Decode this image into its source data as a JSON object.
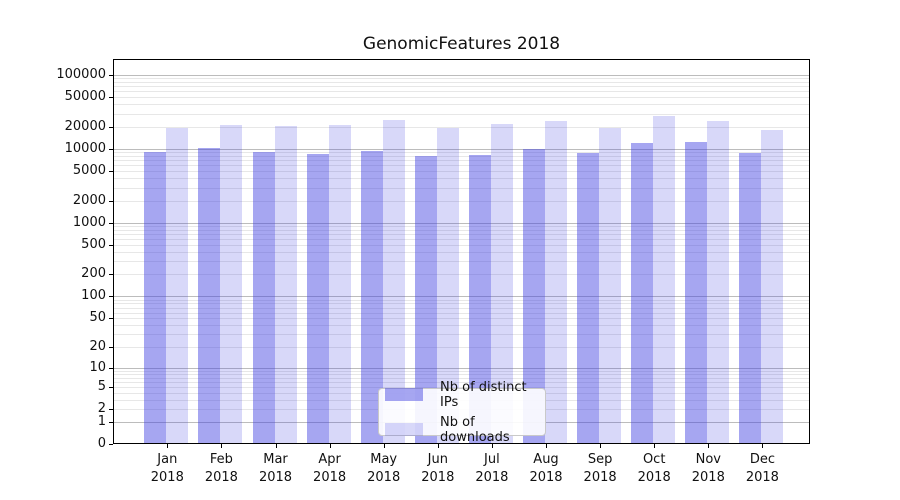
{
  "figure": {
    "title": "GenomicFeatures 2018",
    "background_color": "#ffffff"
  },
  "chart_data": {
    "type": "bar",
    "title": "GenomicFeatures 2018",
    "categories": [
      "Jan 2018",
      "Feb 2018",
      "Mar 2018",
      "Apr 2018",
      "May 2018",
      "Jun 2018",
      "Jul 2018",
      "Aug 2018",
      "Sep 2018",
      "Oct 2018",
      "Nov 2018",
      "Dec 2018"
    ],
    "series": [
      {
        "name": "Nb of distinct IPs",
        "color": "rgba(60,60,225,0.46)",
        "values": [
          9100,
          10300,
          9200,
          8650,
          9500,
          7950,
          8300,
          10000,
          8900,
          11900,
          12300,
          8900
        ]
      },
      {
        "name": "Nb of downloads",
        "color": "rgba(60,60,225,0.20)",
        "values": [
          19450,
          21350,
          20600,
          21350,
          24450,
          19450,
          22050,
          24200,
          19450,
          27650,
          23650,
          17900
        ]
      }
    ],
    "xlabel": "",
    "ylabel": "",
    "yscale": "log1p",
    "yticks": [
      0,
      1,
      2,
      5,
      10,
      20,
      50,
      100,
      200,
      500,
      1000,
      2000,
      5000,
      10000,
      20000,
      50000,
      100000
    ],
    "ylim": [
      0,
      166000
    ],
    "grid": "major-and-minor, horizontal only",
    "legend_position": "lower center"
  },
  "style": {
    "bar_fill_dark": "rgba(60,60,225,0.46)",
    "bar_fill_light": "rgba(60,60,225,0.20)",
    "major_grid_color": "#bcbcbc",
    "minor_grid_color": "#e7e7e7",
    "axis_color": "#000000",
    "text_color": "#111111"
  }
}
